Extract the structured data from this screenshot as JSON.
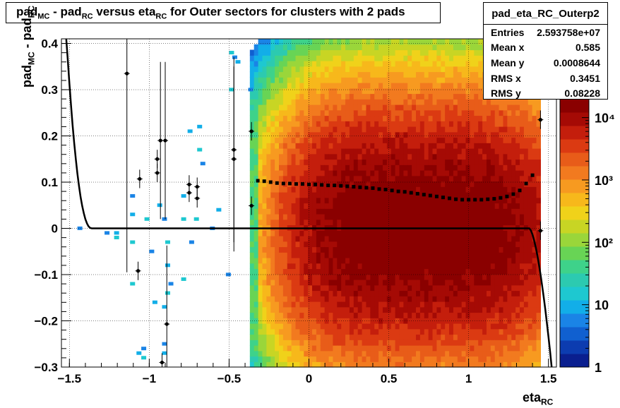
{
  "title": {
    "p1": "pad",
    "s1": "MC",
    "p2": " - pad",
    "s2": "RC",
    "p3": " versus eta",
    "s3": "RC",
    "p4": " for Outer sectors for clusters with 2 pads"
  },
  "stats": {
    "name": "pad_eta_RC_Outerp2",
    "rows": [
      {
        "label": "Entries",
        "value": "2.593758e+07"
      },
      {
        "label": "Mean x",
        "value": "0.585"
      },
      {
        "label": "Mean y",
        "value": "0.0008644"
      },
      {
        "label": "RMS x",
        "value": "0.3451"
      },
      {
        "label": "RMS y",
        "value": "0.08228"
      }
    ]
  },
  "xaxis_title": {
    "main": "eta",
    "sub": "RC"
  },
  "yaxis_title": {
    "p1": "pad",
    "s1": "MC",
    "p2": " - pad",
    "s2": "RC"
  },
  "chart_data": {
    "type": "heatmap",
    "title": "pad_MC - pad_RC versus eta_RC for Outer sectors for clusters with 2 pads",
    "xlabel": "eta_RC",
    "ylabel": "pad_MC - pad_RC",
    "xlim": [
      -1.55,
      1.55
    ],
    "ylim": [
      -0.3,
      0.41
    ],
    "xticks": [
      -1.5,
      -1,
      -0.5,
      0,
      0.5,
      1,
      1.5
    ],
    "xtick_labels": [
      "−1.5",
      "−1",
      "−0.5",
      "0",
      "0.5",
      "1",
      "1.5"
    ],
    "yticks": [
      -0.3,
      -0.2,
      -0.1,
      0,
      0.1,
      0.2,
      0.3,
      0.4
    ],
    "ytick_labels": [
      "−0.3",
      "−0.2",
      "−0.1",
      "0",
      "0.1",
      "0.2",
      "0.3",
      "0.4"
    ],
    "grid": true,
    "colorbar": {
      "scale": "log",
      "range": [
        1,
        20000
      ],
      "tick_labels": [
        "1",
        "10",
        "10²",
        "10³",
        "10⁴"
      ],
      "colors": [
        "#0a1f8f",
        "#0c3cb0",
        "#1060d0",
        "#1a84e6",
        "#12aee8",
        "#1ec8d0",
        "#2ccab0",
        "#3ed28a",
        "#68d455",
        "#9ad63a",
        "#c8d524",
        "#f0d21a",
        "#f7b81b",
        "#f79a20",
        "#f27a1f",
        "#e85c19",
        "#db3a12",
        "#c41e0c",
        "#a50a05",
        "#8a0000"
      ]
    },
    "mean_curve": {
      "x": [
        -0.32,
        -0.28,
        -0.24,
        -0.2,
        -0.16,
        -0.12,
        -0.08,
        -0.04,
        0,
        0.04,
        0.08,
        0.12,
        0.16,
        0.2,
        0.24,
        0.28,
        0.32,
        0.36,
        0.4,
        0.44,
        0.48,
        0.52,
        0.56,
        0.6,
        0.64,
        0.68,
        0.72,
        0.76,
        0.8,
        0.84,
        0.88,
        0.92,
        0.96,
        1.0,
        1.04,
        1.08,
        1.12,
        1.16,
        1.2,
        1.24,
        1.28,
        1.32,
        1.36,
        1.4
      ],
      "y": [
        0.103,
        0.102,
        0.1,
        0.098,
        0.097,
        0.097,
        0.096,
        0.096,
        0.095,
        0.095,
        0.094,
        0.093,
        0.093,
        0.092,
        0.091,
        0.09,
        0.089,
        0.088,
        0.087,
        0.085,
        0.084,
        0.082,
        0.08,
        0.079,
        0.077,
        0.075,
        0.073,
        0.071,
        0.069,
        0.067,
        0.065,
        0.063,
        0.062,
        0.062,
        0.062,
        0.062,
        0.063,
        0.064,
        0.066,
        0.069,
        0.074,
        0.082,
        0.097,
        0.115
      ]
    },
    "outlier_points": [
      {
        "x": -1.14,
        "y": 0.335,
        "err": 0.43
      },
      {
        "x": -1.06,
        "y": 0.107,
        "err": 0.02
      },
      {
        "x": -0.95,
        "y": 0.15,
        "err": 0.02
      },
      {
        "x": -0.95,
        "y": 0.12,
        "err": 0.02
      },
      {
        "x": -0.93,
        "y": 0.19,
        "err": 0.17
      },
      {
        "x": -0.9,
        "y": 0.19,
        "err": 0.17
      },
      {
        "x": -0.75,
        "y": 0.095,
        "err": 0.02
      },
      {
        "x": -0.75,
        "y": 0.077,
        "err": 0.02
      },
      {
        "x": -0.7,
        "y": 0.09,
        "err": 0.02
      },
      {
        "x": -0.7,
        "y": 0.065,
        "err": 0.02
      },
      {
        "x": -0.47,
        "y": 0.15,
        "err": 0.2
      },
      {
        "x": -0.47,
        "y": 0.17,
        "err": 0.2
      },
      {
        "x": -1.07,
        "y": -0.092,
        "err": 0.02
      },
      {
        "x": -0.92,
        "y": -0.29,
        "err": 0.02
      },
      {
        "x": -0.89,
        "y": -0.207,
        "err": 0.17
      },
      {
        "x": -0.36,
        "y": 0.049,
        "err": 0.02
      },
      {
        "x": -0.36,
        "y": 0.21,
        "err": 0.02
      },
      {
        "x": 1.45,
        "y": 0.235,
        "err": 0.02
      },
      {
        "x": 1.45,
        "y": -0.005,
        "err": 0.02
      }
    ],
    "fit_curve_description": "pad_MC - pad_RC mean profile, approximately 0 for |eta|<1.35"
  }
}
